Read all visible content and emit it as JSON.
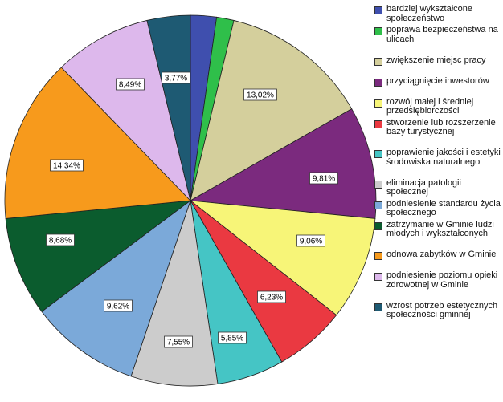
{
  "chart_data": {
    "type": "pie",
    "title": "",
    "slices": [
      {
        "label": "bardziej wykształcone społeczeństwo",
        "value": 2.26,
        "color": "#3f4fae",
        "value_label": ""
      },
      {
        "label": "poprawa bezpieczeństwa na ulicach",
        "value": 1.51,
        "color": "#2fbf4a",
        "value_label": ""
      },
      {
        "label": "zwiększenie miejsc pracy",
        "value": 13.02,
        "color": "#d4cf9c",
        "value_label": "13,02%"
      },
      {
        "label": "przyciągnięcie inwestorów",
        "value": 9.81,
        "color": "#7b2a7e",
        "value_label": "9,81%"
      },
      {
        "label": "rozwój małej i średniej przedsiębiorczości",
        "value": 9.06,
        "color": "#f7f578",
        "value_label": "9,06%"
      },
      {
        "label": "stworzenie lub rozszerzenie bazy turystycznej",
        "value": 6.23,
        "color": "#ea3941",
        "value_label": "6,23%"
      },
      {
        "label": "poprawienie jakości i estetyki środowiska naturalnego",
        "value": 5.85,
        "color": "#45c5c5",
        "value_label": "5,85%"
      },
      {
        "label": "eliminacja patologii społecznej",
        "value": 7.55,
        "color": "#cccccc",
        "value_label": "7,55%"
      },
      {
        "label": "podniesienie standardu życia społecznego",
        "value": 9.62,
        "color": "#7ba9d9",
        "value_label": "9,62%"
      },
      {
        "label": "zatrzymanie w Gminie ludzi młodych i wykształconych",
        "value": 8.68,
        "color": "#0b5c2e",
        "value_label": "8,68%"
      },
      {
        "label": "odnowa zabytków w Gminie",
        "value": 14.34,
        "color": "#f79a1c",
        "value_label": "14,34%"
      },
      {
        "label": "podniesienie poziomu opieki zdrowotnej w Gminie",
        "value": 8.49,
        "color": "#ddb8ec",
        "value_label": "8,49%"
      },
      {
        "label": "wzrost potrzeb estetycznych społeczności gminnej",
        "value": 3.77,
        "color": "#1e5a73",
        "value_label": "3,77%"
      }
    ],
    "start": "12 o'clock",
    "direction": "clockwise",
    "legend_position": "right"
  }
}
